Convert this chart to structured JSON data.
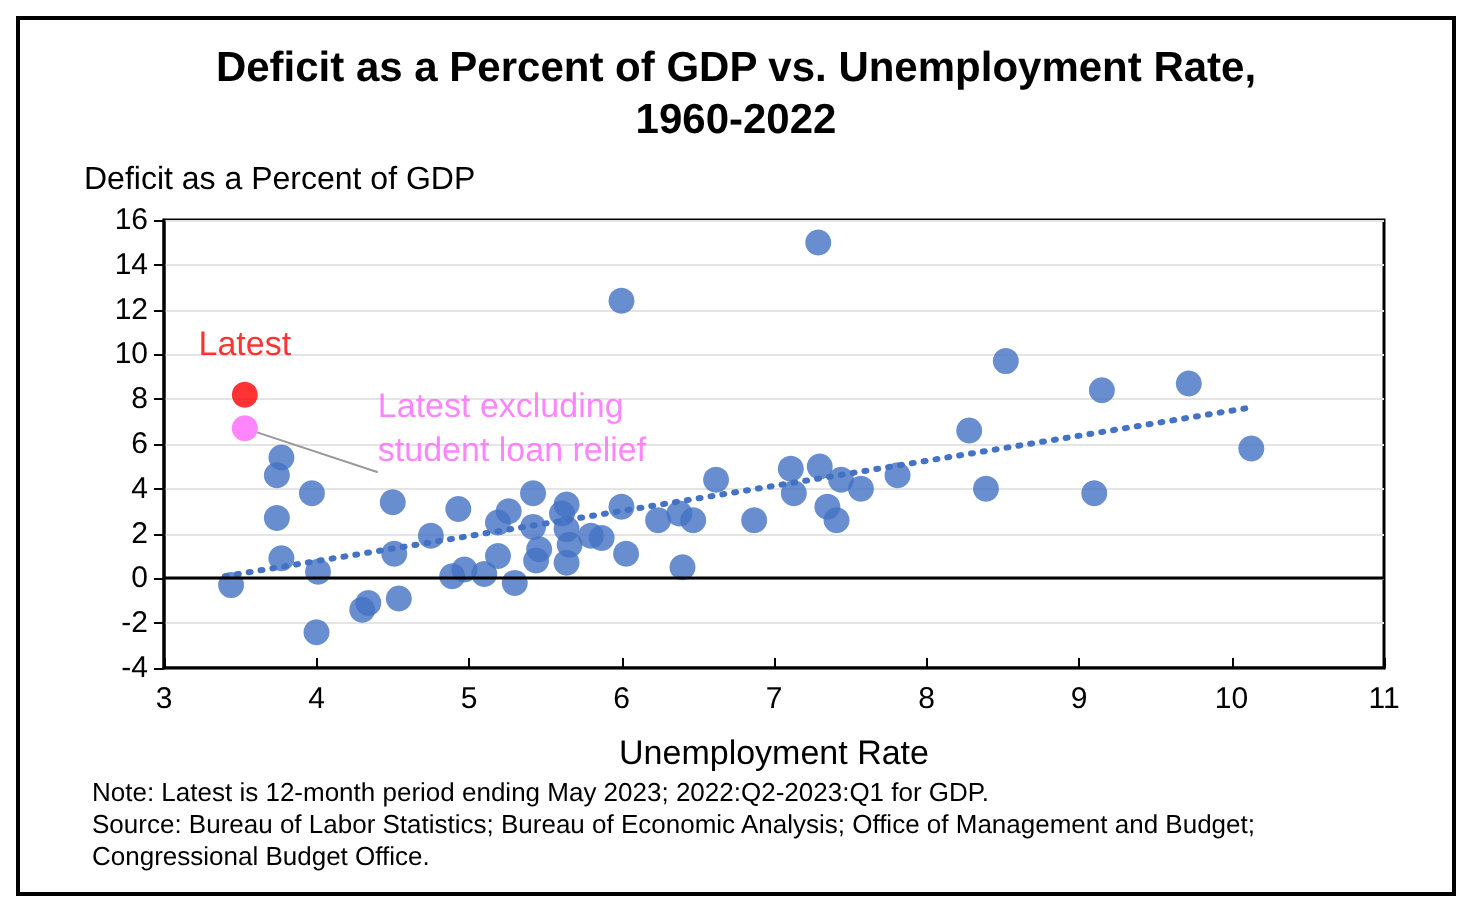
{
  "chart_data": {
    "type": "scatter",
    "title": "Deficit as a Percent of GDP vs. Unemployment Rate,\n1960-2022",
    "xlabel": "Unemployment Rate",
    "ylabel": "Deficit as a Percent of GDP",
    "annotations": [
      "Note: Latest is 12-month period ending May 2023; 2022:Q2-2023:Q1 for GDP.",
      "Source: Bureau of Labor Statistics; Bureau of Economic Analysis; Office of Management and Budget; Congressional Budget Office."
    ],
    "xlim": [
      3,
      11
    ],
    "xticks": [
      3,
      4,
      5,
      6,
      7,
      8,
      9,
      10,
      11
    ],
    "ylim": [
      -4,
      16
    ],
    "yticks": [
      -4,
      -2,
      0,
      2,
      4,
      6,
      8,
      10,
      12,
      14,
      16
    ],
    "grid": "y",
    "legend": false,
    "marker": "circle",
    "ref_lines": [
      {
        "axis": "y",
        "value": 0,
        "color": "#000000"
      }
    ],
    "series": [
      {
        "color": "#4472c4",
        "x": [
          3.44,
          3.77,
          3.74,
          3.74,
          3.77,
          3.97,
          4.01,
          4.0,
          4.3,
          4.34,
          4.5,
          4.51,
          4.54,
          4.75,
          4.89,
          4.97,
          5.1,
          4.93,
          5.19,
          5.3,
          5.19,
          5.26,
          5.42,
          5.42,
          5.46,
          5.44,
          5.64,
          5.61,
          5.64,
          5.66,
          5.64,
          5.8,
          5.87,
          6.0,
          6.03,
          6.0,
          6.24,
          6.38,
          6.47,
          6.4,
          6.62,
          6.87,
          7.11,
          7.13,
          7.3,
          7.44,
          7.57,
          7.35,
          7.41,
          7.29,
          7.81,
          8.28,
          8.39,
          8.52,
          9.1,
          9.15,
          9.72,
          10.13
        ],
        "values": [
          -0.3,
          5.4,
          4.6,
          2.7,
          0.9,
          3.8,
          0.3,
          -2.4,
          -1.4,
          -1.1,
          3.4,
          1.1,
          -0.9,
          1.9,
          0.1,
          0.4,
          0.2,
          3.1,
          1.0,
          -0.2,
          2.5,
          3.0,
          3.8,
          2.3,
          1.3,
          0.8,
          3.3,
          2.9,
          2.2,
          1.5,
          0.7,
          1.9,
          1.8,
          3.2,
          1.1,
          12.4,
          2.6,
          2.9,
          2.6,
          0.5,
          4.4,
          2.6,
          4.9,
          3.8,
          5.0,
          4.4,
          4.0,
          3.2,
          2.6,
          15.0,
          4.6,
          6.6,
          4.0,
          9.7,
          3.8,
          8.4,
          8.7,
          5.8
        ]
      },
      {
        "name": "Latest",
        "color": "#ff0000",
        "x": [
          3.53
        ],
        "values": [
          8.2
        ]
      },
      {
        "name": "Latest excluding\nstudent loan relief",
        "color": "#ff66ff",
        "x": [
          3.53
        ],
        "values": [
          6.7
        ]
      },
      {
        "type": "line",
        "color": "#4472c4",
        "line_style": "dotted",
        "marker": "none",
        "x": [
          3.4,
          10.1
        ],
        "values": [
          0.1,
          7.6
        ]
      }
    ]
  }
}
